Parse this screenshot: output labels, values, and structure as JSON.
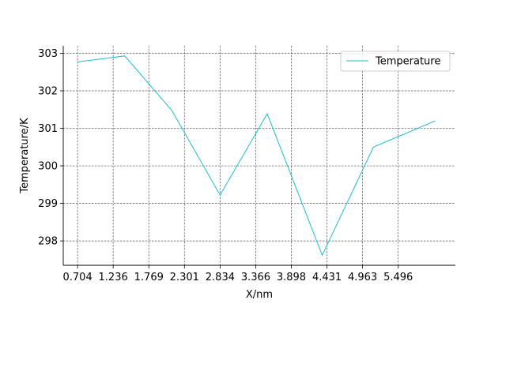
{
  "chart_data": {
    "type": "line",
    "title": "",
    "xlabel": "X/nm",
    "ylabel": "Temperature/K",
    "x_ticks": [
      "0.704",
      "1.236",
      "1.769",
      "2.301",
      "2.834",
      "3.366",
      "3.898",
      "4.431",
      "4.963",
      "5.496"
    ],
    "y_ticks": [
      298,
      299,
      300,
      301,
      302,
      303
    ],
    "xlim": [
      0.49,
      6.35
    ],
    "ylim": [
      297.35,
      303.2
    ],
    "grid": true,
    "legend_position": "top-right",
    "series": [
      {
        "name": "Temperature",
        "color": "#17becf",
        "x": [
          0.704,
          1.408,
          2.112,
          2.834,
          3.538,
          4.36,
          5.125,
          6.05
        ],
        "y": [
          302.77,
          302.93,
          301.48,
          299.22,
          301.39,
          297.62,
          300.5,
          301.2
        ]
      }
    ]
  }
}
